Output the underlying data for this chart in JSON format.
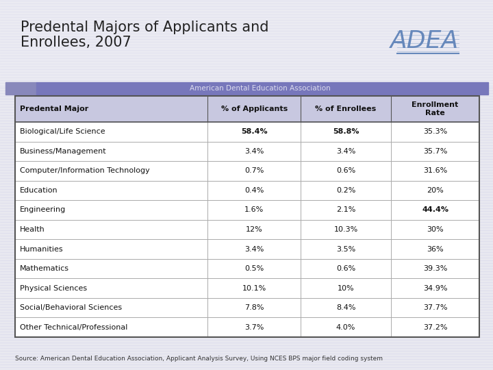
{
  "title_line1": "Predental Majors of Applicants and",
  "title_line2": "Enrollees, 2007",
  "subtitle": "American Dental Education Association",
  "source": "Source: American Dental Education Association, Applicant Analysis Survey, Using NCES BPS major field coding system",
  "columns": [
    "Predental Major",
    "% of Applicants",
    "% of Enrollees",
    "Enrollment\nRate"
  ],
  "rows": [
    [
      "Biological/Life Science",
      "58.4%",
      "58.8%",
      "35.3%"
    ],
    [
      "Business/Management",
      "3.4%",
      "3.4%",
      "35.7%"
    ],
    [
      "Computer/Information Technology",
      "0.7%",
      "0.6%",
      "31.6%"
    ],
    [
      "Education",
      "0.4%",
      "0.2%",
      "20%"
    ],
    [
      "Engineering",
      "1.6%",
      "2.1%",
      "44.4%"
    ],
    [
      "Health",
      "12%",
      "10.3%",
      "30%"
    ],
    [
      "Humanities",
      "3.4%",
      "3.5%",
      "36%"
    ],
    [
      "Mathematics",
      "0.5%",
      "0.6%",
      "39.3%"
    ],
    [
      "Physical Sciences",
      "10.1%",
      "10%",
      "34.9%"
    ],
    [
      "Social/Behavioral Sciences",
      "7.8%",
      "8.4%",
      "37.7%"
    ],
    [
      "Other Technical/Professional",
      "3.7%",
      "4.0%",
      "37.2%"
    ]
  ],
  "bold_cells": {
    "0": [
      1,
      2
    ],
    "4": [
      3
    ]
  },
  "bg_color": "#e8e8f0",
  "bg_stripe_color": "#dcdcec",
  "header_bg": "#c8c8e0",
  "table_bg": "#ffffff",
  "table_border": "#555555",
  "col_sep_color": "#aaaaaa",
  "title_color": "#222222",
  "subtitle_bar_left": "#8888bb",
  "subtitle_bar_right": "#7777bb",
  "subtitle_text_color": "#ddddee",
  "adea_color": "#6688bb",
  "source_color": "#333333"
}
